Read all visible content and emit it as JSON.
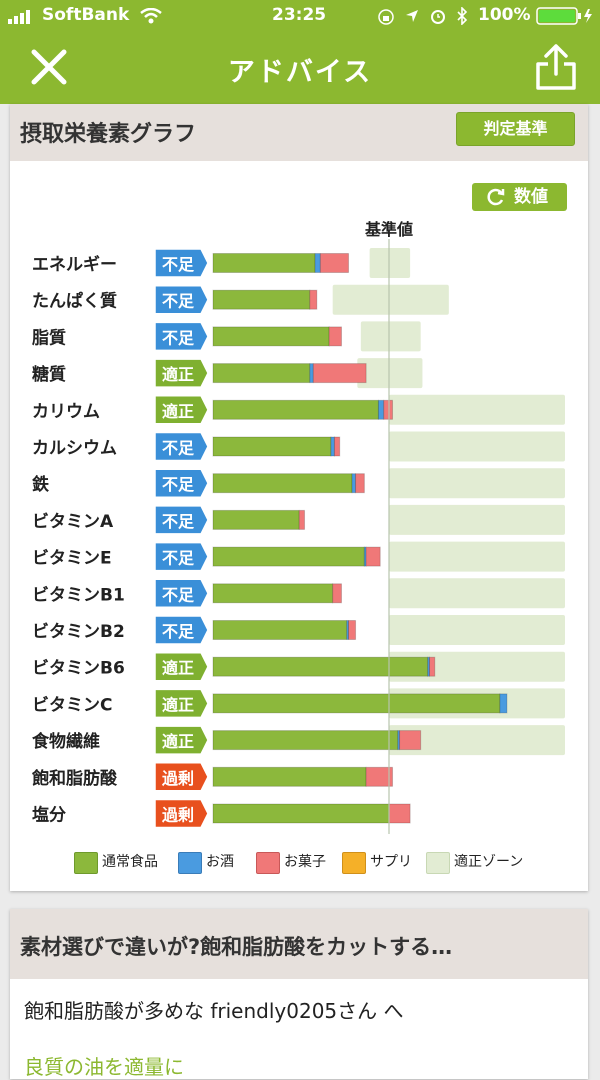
{
  "status": {
    "carrier": "SoftBank",
    "time": "23:25",
    "battery": "100%"
  },
  "nav": {
    "title": "アドバイス",
    "close_icon": "close-icon",
    "share_icon": "share-icon"
  },
  "card": {
    "title": "摂取栄養素グラフ",
    "criteria_button": "判定基準",
    "value_button": "数値"
  },
  "colors": {
    "brand": "#8cb830",
    "bar_normal_food": "#8cb83c",
    "bar_alcohol": "#4a9be0",
    "bar_snack": "#f07878",
    "bar_supplement": "#f5b028",
    "zone": "#e2ecd3",
    "status_insufficient": "#3a8fd8",
    "status_adequate": "#7fb030",
    "status_excess": "#e8501e"
  },
  "chart_data": {
    "type": "bar",
    "orientation": "horizontal",
    "stacked": true,
    "reference_label": "基準値",
    "reference_value": 100,
    "unit": "% of 基準値",
    "categories": [
      "エネルギー",
      "たんぱく質",
      "脂質",
      "糖質",
      "カリウム",
      "カルシウム",
      "鉄",
      "ビタミンA",
      "ビタミンE",
      "ビタミンB1",
      "ビタミンB2",
      "ビタミンB6",
      "ビタミンC",
      "食物繊維",
      "飽和脂肪酸",
      "塩分"
    ],
    "status": [
      "不足",
      "不足",
      "不足",
      "適正",
      "適正",
      "不足",
      "不足",
      "不足",
      "不足",
      "不足",
      "不足",
      "適正",
      "適正",
      "適正",
      "過剰",
      "過剰"
    ],
    "series": [
      {
        "name": "通常食品",
        "values": [
          58,
          55,
          66,
          55,
          94,
          67,
          79,
          49,
          86,
          68,
          76,
          122,
          163,
          105,
          87,
          100
        ]
      },
      {
        "name": "お酒",
        "values": [
          3,
          0,
          0,
          2,
          3,
          2,
          2,
          0,
          1,
          0,
          1,
          1,
          4,
          1,
          0,
          0
        ]
      },
      {
        "name": "お菓子",
        "values": [
          16,
          4,
          7,
          30,
          5,
          3,
          5,
          3,
          8,
          5,
          4,
          3,
          0,
          12,
          15,
          12
        ]
      },
      {
        "name": "サプリ",
        "values": [
          0,
          0,
          0,
          0,
          0,
          0,
          0,
          0,
          0,
          0,
          0,
          0,
          0,
          0,
          0,
          0
        ]
      }
    ],
    "adequate_zone": [
      [
        -11,
        12
      ],
      [
        -32,
        34
      ],
      [
        -16,
        18
      ],
      [
        -18,
        19
      ],
      [
        0,
        100
      ],
      [
        0,
        100
      ],
      [
        0,
        100
      ],
      [
        0,
        100
      ],
      [
        0,
        100
      ],
      [
        0,
        100
      ],
      [
        0,
        100
      ],
      [
        0,
        100
      ],
      [
        0,
        100
      ],
      [
        0,
        100
      ],
      [
        0,
        0
      ],
      [
        0,
        0
      ]
    ],
    "legend": [
      "通常食品",
      "お酒",
      "お菓子",
      "サプリ",
      "適正ゾーン"
    ],
    "legend_position": "bottom"
  },
  "article": {
    "title": "素材選びで違いが?飽和脂肪酸をカットする…",
    "subtitle": "飽和脂肪酸が多めな friendly0205さん へ",
    "link": "良質の油を適量に"
  }
}
